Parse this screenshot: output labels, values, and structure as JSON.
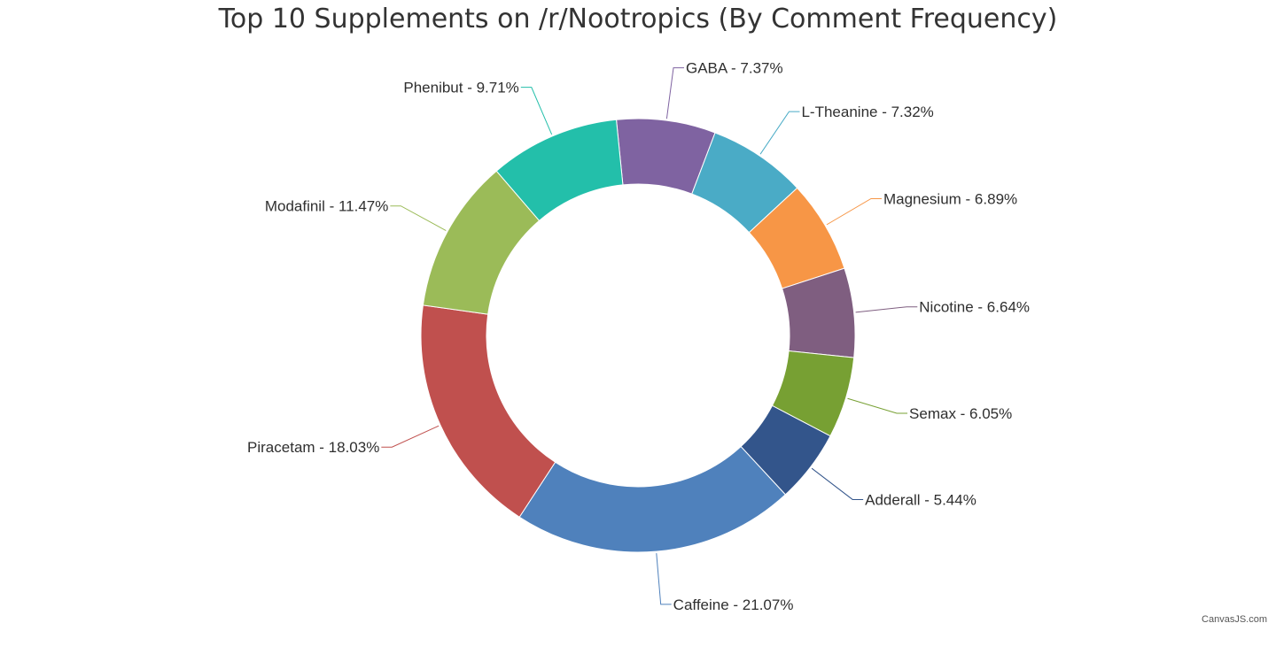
{
  "chart_data": {
    "type": "pie",
    "variant": "doughnut",
    "title": "Top 10 Supplements on /r/Nootropics (By Comment Frequency)",
    "start_angle_deg": -90,
    "direction": "clockwise",
    "slices": [
      {
        "name": "GABA",
        "value": 7.37,
        "label": "GABA - 7.37%",
        "color": "#7f63a1"
      },
      {
        "name": "L-Theanine",
        "value": 7.32,
        "label": "L-Theanine - 7.32%",
        "color": "#4aabc6"
      },
      {
        "name": "Magnesium",
        "value": 6.89,
        "label": "Magnesium - 6.89%",
        "color": "#f79646"
      },
      {
        "name": "Nicotine",
        "value": 6.64,
        "label": "Nicotine - 6.64%",
        "color": "#7f5e80"
      },
      {
        "name": "Semax",
        "value": 6.05,
        "label": "Semax - 6.05%",
        "color": "#77a033"
      },
      {
        "name": "Adderall",
        "value": 5.44,
        "label": "Adderall - 5.44%",
        "color": "#33558b"
      },
      {
        "name": "Caffeine",
        "value": 21.07,
        "label": "Caffeine - 21.07%",
        "color": "#4f81bc"
      },
      {
        "name": "Piracetam",
        "value": 18.03,
        "label": "Piracetam - 18.03%",
        "color": "#c0504e"
      },
      {
        "name": "Modafinil",
        "value": 11.47,
        "label": "Modafinil - 11.47%",
        "color": "#9bbb58"
      },
      {
        "name": "Phenibut",
        "value": 9.71,
        "label": "Phenibut - 9.71%",
        "color": "#23bfaa"
      }
    ]
  },
  "credit": "CanvasJS.com"
}
